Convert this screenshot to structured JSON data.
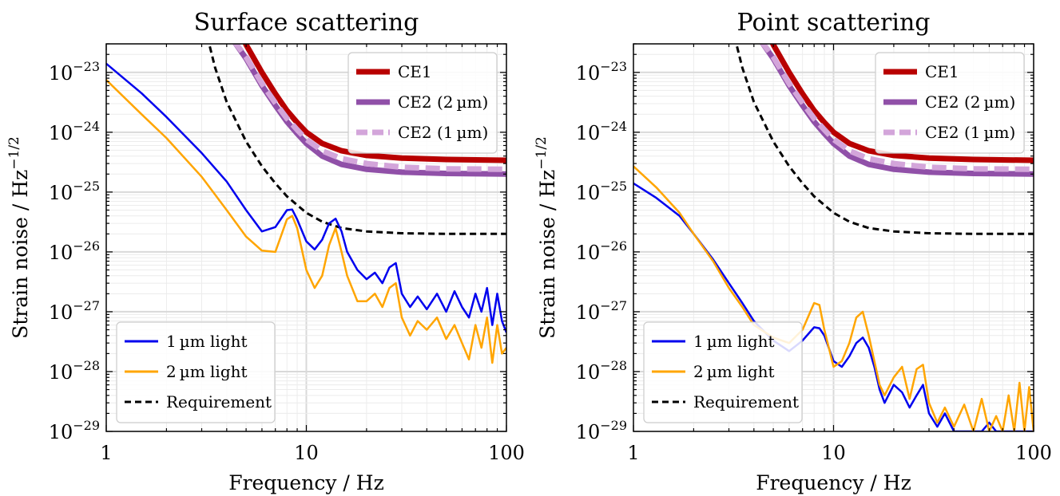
{
  "chart_data": [
    {
      "type": "line",
      "title": "Surface scattering",
      "xlabel": "Frequency / Hz",
      "ylabel_main": "Strain noise / Hz",
      "ylabel_exp": "−1/2",
      "xscale": "log",
      "yscale": "log",
      "xlim": [
        1,
        100
      ],
      "ylim": [
        1e-29,
        3e-23
      ],
      "grid": true,
      "x_ticks": [
        {
          "value": 1,
          "label": "1"
        },
        {
          "value": 10,
          "label": "10"
        },
        {
          "value": 100,
          "label": "100"
        }
      ],
      "y_ticks": [
        {
          "value": 1e-23,
          "base": "10",
          "exp": "−23"
        },
        {
          "value": 1e-24,
          "base": "10",
          "exp": "−24"
        },
        {
          "value": 1e-25,
          "base": "10",
          "exp": "−25"
        },
        {
          "value": 1e-26,
          "base": "10",
          "exp": "−26"
        },
        {
          "value": 1e-27,
          "base": "10",
          "exp": "−27"
        },
        {
          "value": 1e-28,
          "base": "10",
          "exp": "−28"
        },
        {
          "value": 1e-29,
          "base": "10",
          "exp": "−29"
        }
      ],
      "legends": [
        {
          "position": "upper-right",
          "entries": [
            {
              "label": "CE1",
              "color": "#b80000",
              "style": "solid"
            },
            {
              "label": "CE2 (2 µm)",
              "color": "#9050a8",
              "style": "solid"
            },
            {
              "label": "CE2 (1 µm)",
              "color": "#d3a5da",
              "style": "dashed"
            }
          ]
        },
        {
          "position": "lower-left",
          "entries": [
            {
              "label": "1 µm light",
              "color": "#0000ee",
              "style": "solid"
            },
            {
              "label": "2 µm light",
              "color": "#ffa500",
              "style": "solid"
            },
            {
              "label": "Requirement",
              "color": "#000000",
              "style": "dashed"
            }
          ]
        }
      ],
      "series": [
        {
          "name": "CE1",
          "color": "#b80000",
          "width": 7,
          "dash": "",
          "x": [
            4.8,
            5,
            6,
            7,
            8,
            9,
            10,
            12,
            15,
            20,
            30,
            50,
            100
          ],
          "y": [
            4e-23,
            2.9e-23,
            1e-23,
            4.4e-24,
            2.3e-24,
            1.45e-24,
            1e-24,
            6.5e-25,
            4.9e-25,
            4.1e-25,
            3.7e-25,
            3.5e-25,
            3.4e-25
          ]
        },
        {
          "name": "CE2 (2 µm)",
          "color": "#9050a8",
          "width": 7,
          "dash": "",
          "x": [
            4.3,
            5,
            6,
            7,
            8,
            9,
            10,
            12,
            15,
            20,
            30,
            50,
            100
          ],
          "y": [
            3.5e-23,
            1.7e-23,
            6e-24,
            2.8e-24,
            1.5e-24,
            9.5e-25,
            6.5e-25,
            4e-25,
            2.9e-25,
            2.4e-25,
            2.15e-25,
            2.05e-25,
            2e-25
          ]
        },
        {
          "name": "CE2 (1 µm)",
          "color": "#d3a5da",
          "width": 7,
          "dash": "18 8",
          "x": [
            4.3,
            5,
            6,
            7,
            8,
            9,
            10,
            12,
            15,
            20,
            30,
            50,
            100
          ],
          "y": [
            3.5e-23,
            1.8e-23,
            6.5e-24,
            3.1e-24,
            1.7e-24,
            1.1e-24,
            7.6e-25,
            4.9e-25,
            3.6e-25,
            3e-25,
            2.6e-25,
            2.45e-25,
            2.4e-25
          ]
        },
        {
          "name": "Requirement",
          "color": "#000000",
          "width": 3,
          "dash": "8 5",
          "x": [
            3.2,
            3.5,
            4,
            5,
            6,
            7,
            8,
            10,
            12,
            15,
            20,
            30,
            50,
            100
          ],
          "y": [
            4e-23,
            1.2e-23,
            3.2e-24,
            7e-25,
            2.7e-25,
            1.4e-25,
            8.5e-26,
            4.5e-26,
            3.2e-26,
            2.5e-26,
            2.2e-26,
            2.05e-26,
            2e-26,
            2e-26
          ]
        },
        {
          "name": "1 µm light",
          "color": "#0000ee",
          "width": 2.5,
          "dash": "",
          "x": [
            1,
            1.5,
            2,
            3,
            4,
            5,
            6,
            7,
            8,
            8.5,
            9,
            10,
            11,
            12,
            13,
            14,
            15,
            16,
            18,
            20,
            22,
            24,
            26,
            28,
            30,
            33,
            36,
            40,
            45,
            50,
            55,
            60,
            65,
            70,
            75,
            80,
            85,
            90,
            95,
            100
          ],
          "y": [
            1.4e-23,
            4.5e-24,
            1.8e-24,
            4.5e-25,
            1.5e-25,
            5e-26,
            2.2e-26,
            2.6e-26,
            5e-26,
            5.1e-26,
            3.5e-26,
            1.5e-26,
            1.1e-26,
            1.6e-26,
            3e-26,
            3.6e-26,
            2.2e-26,
            1e-26,
            5e-27,
            3.5e-27,
            4.5e-27,
            3e-27,
            5.5e-27,
            6.5e-27,
            2e-27,
            1.2e-27,
            1.8e-27,
            1.1e-27,
            2e-27,
            1e-27,
            2.2e-27,
            1.2e-27,
            8e-28,
            2e-27,
            1e-27,
            2.5e-27,
            6e-28,
            2e-27,
            7e-28,
            4.5e-28
          ]
        },
        {
          "name": "2 µm light",
          "color": "#ffa500",
          "width": 2.5,
          "dash": "",
          "x": [
            1,
            1.5,
            2,
            3,
            4,
            5,
            6,
            7,
            8,
            8.5,
            9,
            10,
            11,
            12,
            13,
            14,
            15,
            16,
            18,
            20,
            22,
            24,
            26,
            28,
            30,
            33,
            36,
            40,
            45,
            50,
            55,
            60,
            65,
            70,
            75,
            80,
            85,
            90,
            95,
            100
          ],
          "y": [
            7.5e-24,
            2e-24,
            8e-25,
            1.8e-25,
            5e-26,
            1.8e-26,
            1.05e-26,
            1e-26,
            3.5e-26,
            4e-26,
            2.5e-26,
            5e-27,
            2.5e-27,
            4e-27,
            1.3e-26,
            2.5e-26,
            1e-26,
            4e-27,
            1.5e-27,
            1.5e-27,
            2e-27,
            1.2e-27,
            2.5e-27,
            3e-27,
            8e-28,
            4e-28,
            7e-28,
            5e-28,
            8e-28,
            3.5e-28,
            6e-28,
            3e-28,
            1.6e-28,
            6e-28,
            2.5e-28,
            8e-28,
            1.4e-28,
            6e-28,
            2e-28,
            2.5e-28
          ]
        }
      ]
    },
    {
      "type": "line",
      "title": "Point scattering",
      "xlabel": "Frequency / Hz",
      "ylabel_main": "Strain noise / Hz",
      "ylabel_exp": "−1/2",
      "xscale": "log",
      "yscale": "log",
      "xlim": [
        1,
        100
      ],
      "ylim": [
        1e-29,
        3e-23
      ],
      "grid": true,
      "x_ticks": [
        {
          "value": 1,
          "label": "1"
        },
        {
          "value": 10,
          "label": "10"
        },
        {
          "value": 100,
          "label": "100"
        }
      ],
      "y_ticks": [
        {
          "value": 1e-23,
          "base": "10",
          "exp": "−23"
        },
        {
          "value": 1e-24,
          "base": "10",
          "exp": "−24"
        },
        {
          "value": 1e-25,
          "base": "10",
          "exp": "−25"
        },
        {
          "value": 1e-26,
          "base": "10",
          "exp": "−26"
        },
        {
          "value": 1e-27,
          "base": "10",
          "exp": "−27"
        },
        {
          "value": 1e-28,
          "base": "10",
          "exp": "−28"
        },
        {
          "value": 1e-29,
          "base": "10",
          "exp": "−29"
        }
      ],
      "legends": [
        {
          "position": "upper-right",
          "entries": [
            {
              "label": "CE1",
              "color": "#b80000",
              "style": "solid"
            },
            {
              "label": "CE2 (2 µm)",
              "color": "#9050a8",
              "style": "solid"
            },
            {
              "label": "CE2 (1 µm)",
              "color": "#d3a5da",
              "style": "dashed"
            }
          ]
        },
        {
          "position": "lower-left",
          "entries": [
            {
              "label": "1 µm light",
              "color": "#0000ee",
              "style": "solid"
            },
            {
              "label": "2 µm light",
              "color": "#ffa500",
              "style": "solid"
            },
            {
              "label": "Requirement",
              "color": "#000000",
              "style": "dashed"
            }
          ]
        }
      ],
      "series": [
        {
          "name": "CE1",
          "color": "#b80000",
          "width": 7,
          "dash": "",
          "x": [
            4.8,
            5,
            6,
            7,
            8,
            9,
            10,
            12,
            15,
            20,
            30,
            50,
            100
          ],
          "y": [
            4e-23,
            2.9e-23,
            1e-23,
            4.4e-24,
            2.3e-24,
            1.45e-24,
            1e-24,
            6.5e-25,
            4.9e-25,
            4.1e-25,
            3.7e-25,
            3.5e-25,
            3.4e-25
          ]
        },
        {
          "name": "CE2 (2 µm)",
          "color": "#9050a8",
          "width": 7,
          "dash": "",
          "x": [
            4.3,
            5,
            6,
            7,
            8,
            9,
            10,
            12,
            15,
            20,
            30,
            50,
            100
          ],
          "y": [
            3.5e-23,
            1.7e-23,
            6e-24,
            2.8e-24,
            1.5e-24,
            9.5e-25,
            6.5e-25,
            4e-25,
            2.9e-25,
            2.4e-25,
            2.15e-25,
            2.05e-25,
            2e-25
          ]
        },
        {
          "name": "CE2 (1 µm)",
          "color": "#d3a5da",
          "width": 7,
          "dash": "18 8",
          "x": [
            4.3,
            5,
            6,
            7,
            8,
            9,
            10,
            12,
            15,
            20,
            30,
            50,
            100
          ],
          "y": [
            3.5e-23,
            1.8e-23,
            6.5e-24,
            3.1e-24,
            1.7e-24,
            1.1e-24,
            7.6e-25,
            4.9e-25,
            3.6e-25,
            3e-25,
            2.6e-25,
            2.45e-25,
            2.4e-25
          ]
        },
        {
          "name": "Requirement",
          "color": "#000000",
          "width": 3,
          "dash": "8 5",
          "x": [
            3.2,
            3.5,
            4,
            5,
            6,
            7,
            8,
            10,
            12,
            15,
            20,
            30,
            50,
            100
          ],
          "y": [
            4e-23,
            1.2e-23,
            3.2e-24,
            7e-25,
            2.7e-25,
            1.4e-25,
            8.5e-26,
            4.5e-26,
            3.2e-26,
            2.5e-26,
            2.2e-26,
            2.05e-26,
            2e-26,
            2e-26
          ]
        },
        {
          "name": "1 µm light",
          "color": "#0000ee",
          "width": 2.5,
          "dash": "",
          "x": [
            1,
            1.3,
            1.7,
            2,
            2.5,
            3,
            3.5,
            4,
            5,
            6,
            7,
            8,
            8.5,
            9,
            10,
            11,
            12,
            13,
            14,
            15,
            16,
            17,
            18,
            20,
            22,
            24,
            26,
            28,
            30,
            33,
            36,
            40,
            45,
            50,
            55,
            60,
            65,
            70,
            80,
            90,
            100
          ],
          "y": [
            1.4e-25,
            8e-26,
            4e-26,
            2e-26,
            7.5e-27,
            3e-27,
            1.4e-27,
            7e-28,
            3.3e-28,
            2.2e-28,
            3.3e-28,
            5.5e-28,
            5.3e-28,
            4e-28,
            1.5e-28,
            1.2e-28,
            1.8e-28,
            3e-28,
            3.7e-28,
            2.5e-28,
            1.2e-28,
            5e-29,
            3e-29,
            6e-29,
            4.5e-29,
            2.5e-29,
            4e-29,
            6e-29,
            2e-29,
            1.2e-29,
            2e-29,
            1e-29,
            1e-29,
            1e-29,
            1e-29,
            1.4e-29,
            1e-29,
            1e-29,
            1e-29,
            1e-29,
            1e-29
          ]
        },
        {
          "name": "2 µm light",
          "color": "#ffa500",
          "width": 2.5,
          "dash": "",
          "x": [
            1,
            1.3,
            1.7,
            2,
            2.5,
            3,
            3.5,
            4,
            5,
            6,
            7,
            8,
            8.5,
            9,
            10,
            11,
            12,
            13,
            14,
            15,
            16,
            17,
            18,
            20,
            22,
            24,
            26,
            28,
            30,
            33,
            36,
            40,
            45,
            50,
            55,
            60,
            65,
            70,
            75,
            80,
            85,
            90,
            95,
            100
          ],
          "y": [
            2.7e-25,
            1.2e-25,
            4.5e-26,
            2e-26,
            7e-27,
            2.5e-27,
            1.2e-27,
            6e-28,
            3.7e-28,
            3e-28,
            5e-28,
            1.4e-27,
            1.3e-27,
            5e-28,
            1.2e-28,
            1.5e-28,
            3e-28,
            8e-28,
            1e-27,
            4e-28,
            1.5e-28,
            6e-29,
            4e-29,
            8e-29,
            1.2e-28,
            3.5e-29,
            1.1e-28,
            1.3e-28,
            3e-29,
            1.4e-29,
            2.5e-29,
            1.2e-29,
            2.8e-29,
            1e-29,
            3.5e-29,
            1e-29,
            1.8e-29,
            1e-29,
            4e-29,
            1e-29,
            6.5e-29,
            1e-29,
            5.5e-29,
            1e-29
          ]
        }
      ]
    }
  ]
}
